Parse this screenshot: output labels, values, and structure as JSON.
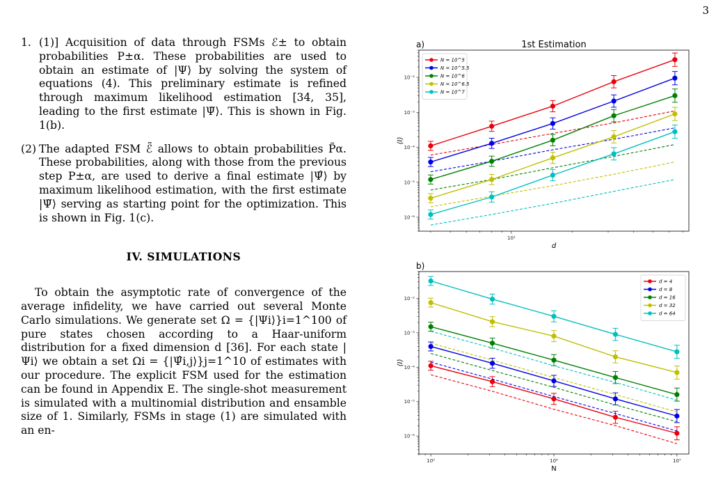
{
  "page_number": "3",
  "text": {
    "item1_num": "1.",
    "item1": "(1)] Acquisition of data through FSMs ℰ± to obtain probabilities P±α. These probabilities are used to obtain an estimate of |Ψ⟩ by solving the system of equations (4). This preliminary estimate is refined through maximum likelihood estimation [34, 35], leading to the first estimate |Ψ̃⟩. This is shown in Fig. 1(b).",
    "item2_num": "(2)",
    "item2": "The adapted FSM ℰ̃ allows to obtain probabilities P̃α. These probabilities, along with those from the previous step P±α, are used to derive a final estimate |Ψ̂⟩ by maximum likelihood estimation, with the first estimate |Ψ̃⟩ serving as starting point for the optimization. This is shown in Fig. 1(c).",
    "section_heading": "IV. SIMULATIONS",
    "para": "To obtain the asymptotic rate of convergence of the average infidelity, we have carried out several Monte Carlo simulations. We generate set Ω = {|Ψi⟩}i=1^100 of pure states chosen according to a Haar-uniform distribution for a fixed dimension d [36]. For each state |Ψi⟩ we obtain a set Ωi = {|Ψ̂i,j⟩}j=1^10 of estimates with our procedure. The explicit FSM used for the estimation can be found in Appendix E. The single-shot measurement is simulated with a multinomial distribution and ensamble size of 1. Similarly, FSMs in stage (1) are simulated with an en-"
  },
  "chart_data": [
    {
      "type": "line",
      "panel_label": "a)",
      "title": "1st Estimation",
      "xlabel": "d",
      "ylabel": "⟨I⟩",
      "x_scale": "log",
      "y_scale": "log",
      "x": [
        4,
        8,
        16,
        32,
        64
      ],
      "xlim": [
        3.5,
        75
      ],
      "ylim": [
        4e-07,
        0.06
      ],
      "x_tick_labels": [
        "10¹"
      ],
      "y_tick_labels": [
        "10⁻⁶",
        "10⁻⁵",
        "10⁻⁴",
        "10⁻³",
        "10⁻²"
      ],
      "legend_position": "top-left",
      "series": [
        {
          "name": "N = 10^5",
          "color": "#e8000b",
          "values": [
            0.00011,
            0.0004,
            0.0015,
            0.0075,
            0.032
          ],
          "dashed": [
            6e-05,
            0.00012,
            0.00025,
            0.0005,
            0.0011
          ]
        },
        {
          "name": "N = 10^5.5",
          "color": "#0000e6",
          "values": [
            3.8e-05,
            0.00013,
            0.00048,
            0.0021,
            0.0095
          ],
          "dashed": [
            2e-05,
            4e-05,
            8.5e-05,
            0.00017,
            0.00036
          ]
        },
        {
          "name": "N = 10^6",
          "color": "#008000",
          "values": [
            1.2e-05,
            4e-05,
            0.00016,
            0.0008,
            0.003
          ],
          "dashed": [
            6e-06,
            1.2e-05,
            2.6e-05,
            5.5e-05,
            0.00012
          ]
        },
        {
          "name": "N = 10^6.5",
          "color": "#bfbf00",
          "values": [
            3.5e-06,
            1.2e-05,
            5e-05,
            0.0002,
            0.0009
          ],
          "dashed": [
            2e-06,
            4e-06,
            8e-06,
            1.7e-05,
            3.8e-05
          ]
        },
        {
          "name": "N = 10^7",
          "color": "#00bfbf",
          "values": [
            1.2e-06,
            3.8e-06,
            1.6e-05,
            6.5e-05,
            0.00028
          ],
          "dashed": [
            6e-07,
            1.2e-06,
            2.5e-06,
            5.5e-06,
            1.2e-05
          ]
        }
      ]
    },
    {
      "type": "line",
      "panel_label": "b)",
      "title": "",
      "xlabel": "N",
      "ylabel": "⟨I⟩",
      "x_scale": "log",
      "y_scale": "log",
      "x": [
        100000,
        316228,
        1000000,
        3162278,
        10000000
      ],
      "xlim": [
        80000,
        12500000
      ],
      "ylim": [
        3e-07,
        0.06
      ],
      "x_tick_labels": [
        "10⁵",
        "10⁶",
        "10⁷"
      ],
      "y_tick_labels": [
        "10⁻⁶",
        "10⁻⁵",
        "10⁻⁴",
        "10⁻³",
        "10⁻²"
      ],
      "legend_position": "top-right",
      "series": [
        {
          "name": "d = 4",
          "color": "#e8000b",
          "values": [
            0.00011,
            3.8e-05,
            1.2e-05,
            3.5e-06,
            1.2e-06
          ],
          "dashed": [
            6e-05,
            2e-05,
            6e-06,
            2e-06,
            6e-07
          ]
        },
        {
          "name": "d = 8",
          "color": "#0000e6",
          "values": [
            0.0004,
            0.00013,
            4e-05,
            1.2e-05,
            3.8e-06
          ],
          "dashed": [
            0.00014,
            4.5e-05,
            1.4e-05,
            4.5e-06,
            1.4e-06
          ]
        },
        {
          "name": "d = 16",
          "color": "#008000",
          "values": [
            0.0015,
            0.0005,
            0.00016,
            5e-05,
            1.6e-05
          ],
          "dashed": [
            0.00025,
            8e-05,
            2.6e-05,
            8e-06,
            2.6e-06
          ]
        },
        {
          "name": "d = 32",
          "color": "#bfbf00",
          "values": [
            0.0075,
            0.0021,
            0.0008,
            0.0002,
            7e-05
          ],
          "dashed": [
            0.0005,
            0.00016,
            5e-05,
            1.6e-05,
            5e-06
          ]
        },
        {
          "name": "d = 64",
          "color": "#00bfbf",
          "values": [
            0.032,
            0.0095,
            0.003,
            0.0009,
            0.00028
          ],
          "dashed": [
            0.0011,
            0.00036,
            0.00011,
            3.6e-05,
            1.1e-05
          ]
        }
      ]
    }
  ]
}
